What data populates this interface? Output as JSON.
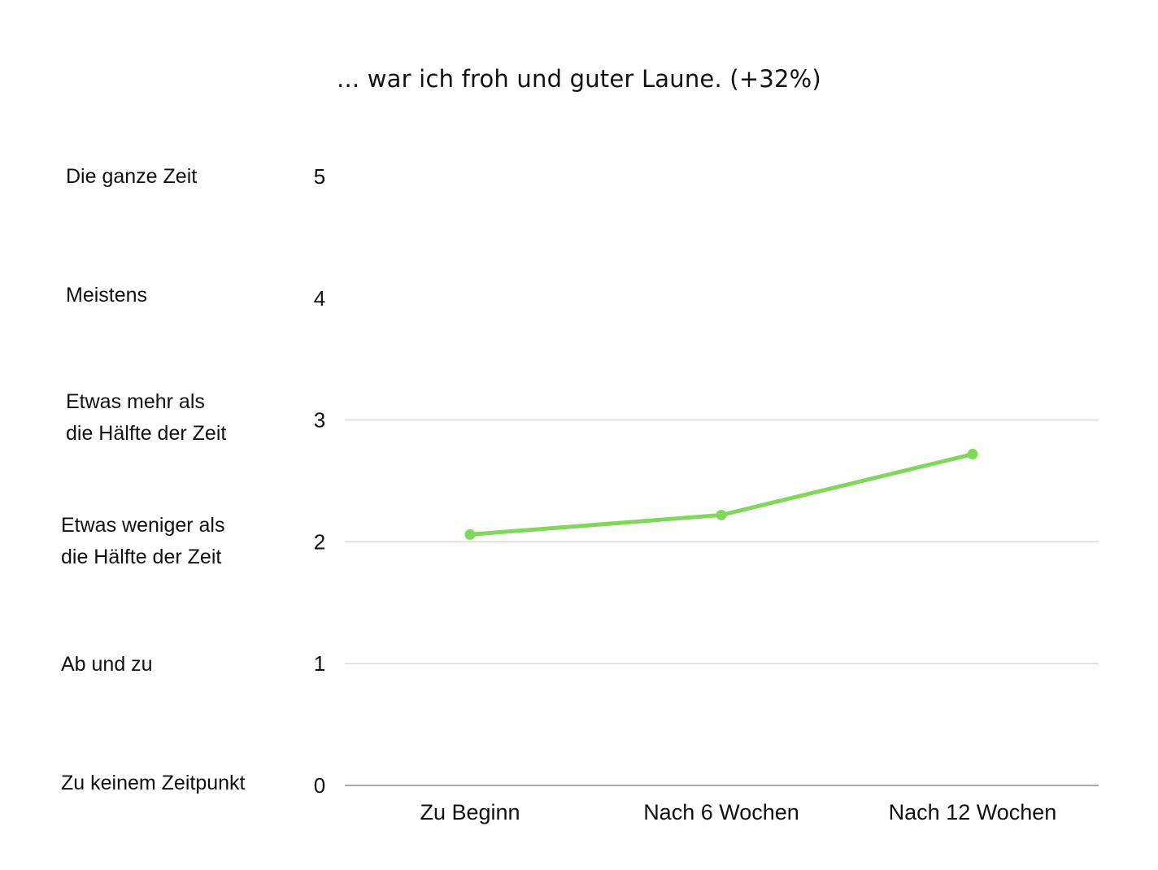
{
  "colors": {
    "series": "#7ed957",
    "grid": "#d9d9d9",
    "baseline": "#8c8c8c",
    "text": "#111111"
  },
  "chart_data": {
    "type": "line",
    "title": "... war ich froh und guter Laune. (+32%)",
    "xlabel": "",
    "ylabel": "",
    "categories": [
      "Zu Beginn",
      "Nach 6 Wochen",
      "Nach 12 Wochen"
    ],
    "series": [
      {
        "values": [
          2.06,
          2.22,
          2.72
        ]
      }
    ],
    "ylim": [
      0,
      5
    ],
    "yticks": [
      "0",
      "1",
      "2",
      "3",
      "4",
      "5"
    ],
    "gridlines_at": [
      1,
      2,
      3
    ],
    "grid": true,
    "legend": "none",
    "scale_labels": [
      {
        "value": 5,
        "lines": [
          "Die ganze Zeit"
        ]
      },
      {
        "value": 4,
        "lines": [
          "Meistens"
        ]
      },
      {
        "value": 3,
        "lines": [
          "Etwas mehr als",
          "die Hälfte der Zeit"
        ]
      },
      {
        "value": 2,
        "lines": [
          "Etwas weniger als",
          "die Hälfte der Zeit"
        ]
      },
      {
        "value": 1,
        "lines": [
          "Ab und zu"
        ]
      },
      {
        "value": 0,
        "lines": [
          "Zu keinem Zeitpunkt"
        ]
      }
    ]
  }
}
